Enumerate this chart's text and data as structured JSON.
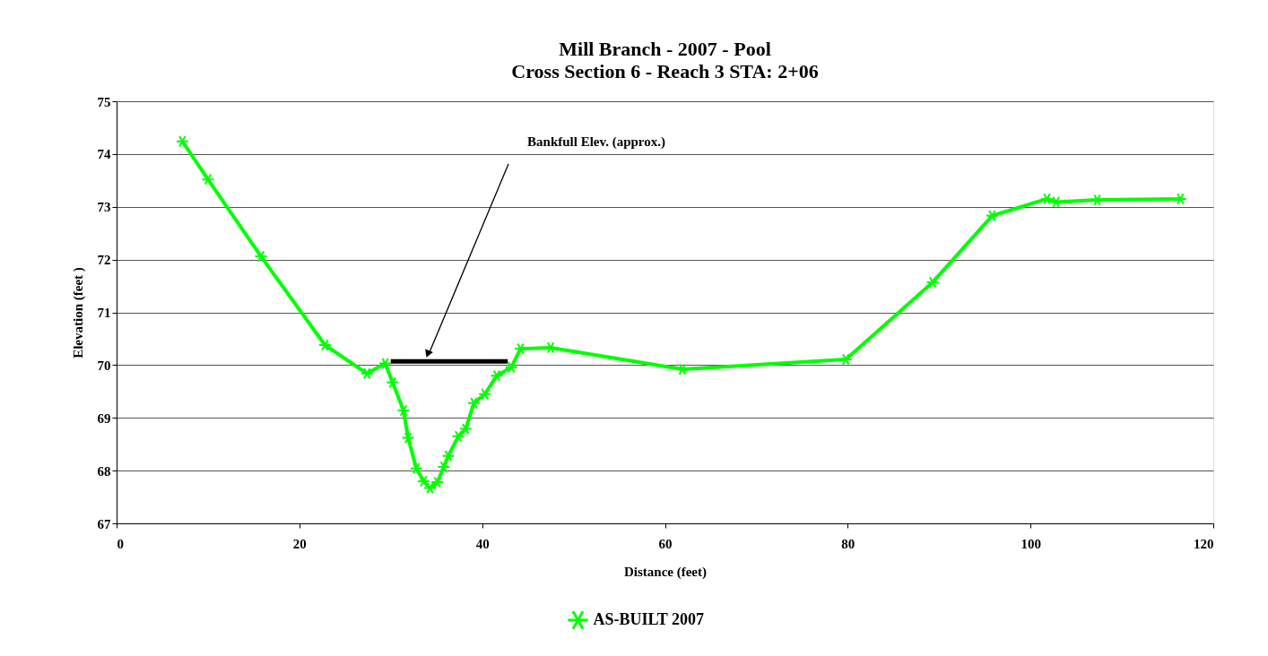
{
  "chart_data": {
    "type": "line",
    "title": "Mill Branch - 2007 - Pool",
    "subtitle": "Cross Section 6 - Reach 3      STA: 2+06",
    "xlabel": "Distance (feet)",
    "ylabel": "Elevation (feet )",
    "series": [
      {
        "name": "AS-BUILT 2007",
        "color": "#00ff00",
        "marker": "cross",
        "line_style": "solid",
        "x": [
          7.2,
          10.0,
          15.8,
          22.8,
          27.4,
          29.4,
          30.2,
          31.4,
          31.9,
          32.8,
          33.6,
          34.3,
          35.1,
          35.8,
          36.3,
          37.4,
          38.2,
          39.1,
          40.3,
          41.6,
          43.2,
          44.2,
          47.5,
          61.9,
          79.8,
          89.3,
          95.8,
          101.8,
          102.8,
          107.3,
          116.4
        ],
        "values": [
          74.24,
          73.52,
          72.06,
          70.38,
          69.84,
          70.03,
          69.67,
          69.14,
          68.62,
          68.04,
          67.8,
          67.67,
          67.78,
          68.07,
          68.28,
          68.65,
          68.79,
          69.28,
          69.45,
          69.8,
          69.96,
          70.31,
          70.33,
          69.92,
          70.11,
          71.57,
          72.83,
          73.15,
          73.09,
          73.13,
          73.15
        ]
      },
      {
        "type": "line",
        "color": "#000000",
        "marker": "none",
        "line_style": "solid",
        "x": [
          30.0,
          42.8
        ],
        "values": [
          70.07,
          70.07
        ]
      }
    ],
    "annotations": [
      "Bankfull Elev. (approx.)"
    ],
    "xlim": [
      0,
      120
    ],
    "xticks": [
      0,
      20,
      40,
      60,
      80,
      100,
      120
    ],
    "ylim": [
      67,
      75
    ],
    "yticks": [
      67,
      68,
      69,
      70,
      71,
      72,
      73,
      74,
      75
    ],
    "grid": "y",
    "legend": "bottom"
  }
}
